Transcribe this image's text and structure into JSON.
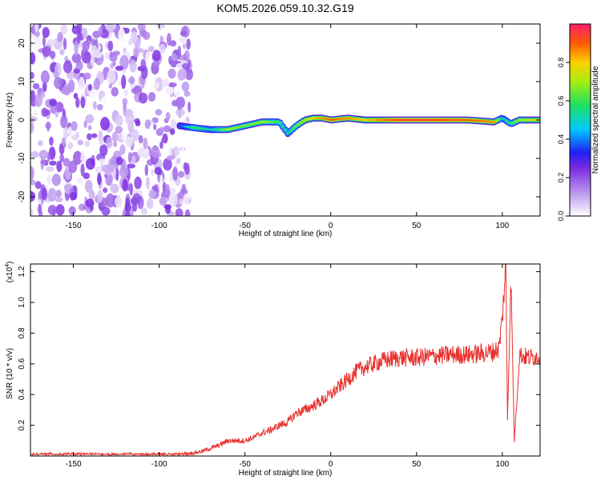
{
  "title": "KOM5.2026.059.10.32.G19",
  "chart_data": [
    {
      "type": "heatmap",
      "name": "spectrogram",
      "xlabel": "Height of straight line (km)",
      "ylabel": "Frequency (Hz)",
      "xlim": [
        -175,
        122
      ],
      "ylim": [
        -25,
        25
      ],
      "xticks": [
        -150,
        -100,
        -50,
        0,
        50,
        100
      ],
      "yticks": [
        -20,
        -10,
        0,
        10,
        20
      ],
      "colorbar": {
        "label": "Normalized spectral amplitude",
        "range": [
          0.0,
          1.0
        ],
        "ticks": [
          0.0,
          0.2,
          0.4,
          0.6,
          0.8
        ]
      },
      "signal_track": {
        "description": "narrow band near 0 Hz from about -88 km to 122 km",
        "x": [
          -88,
          -80,
          -70,
          -60,
          -50,
          -40,
          -30,
          -25,
          -20,
          -15,
          -10,
          -5,
          0,
          10,
          20,
          40,
          60,
          80,
          95,
          100,
          105,
          110,
          122
        ],
        "y": [
          -1.5,
          -2.0,
          -2.5,
          -2.5,
          -1.5,
          -0.5,
          -0.5,
          -3.5,
          -1.5,
          0.0,
          0.5,
          0.5,
          0.0,
          0.5,
          0.0,
          0.0,
          0.0,
          0.0,
          -0.5,
          0.5,
          -1.0,
          0.0,
          0.0
        ],
        "amplitude": [
          0.35,
          0.6,
          0.5,
          0.7,
          0.65,
          0.7,
          0.6,
          0.55,
          0.65,
          0.75,
          0.8,
          0.85,
          0.9,
          0.85,
          0.8,
          0.95,
          0.95,
          0.9,
          0.85,
          0.5,
          0.6,
          0.7,
          0.8
        ]
      },
      "noise_region": {
        "x_range": [
          -175,
          -82
        ],
        "amplitude_range": [
          0.0,
          0.25
        ]
      }
    },
    {
      "type": "line",
      "name": "snr",
      "xlabel": "Height of straight line (km)",
      "ylabel": "SNR (10 * v/v)",
      "y_multiplier": "(x10",
      "y_multiplier_exp": "4",
      "y_multiplier_close": ")",
      "xlim": [
        -175,
        122
      ],
      "ylim": [
        0,
        1.25
      ],
      "xticks": [
        -150,
        -100,
        -50,
        0,
        50,
        100
      ],
      "yticks": [
        0.2,
        0.4,
        0.6,
        0.8,
        1.0,
        1.2
      ],
      "color": "#e8302c",
      "series": {
        "name": "SNR",
        "x": [
          -175,
          -150,
          -120,
          -100,
          -90,
          -80,
          -75,
          -70,
          -65,
          -60,
          -55,
          -50,
          -45,
          -40,
          -35,
          -30,
          -25,
          -20,
          -15,
          -10,
          -5,
          0,
          5,
          10,
          15,
          20,
          25,
          30,
          35,
          40,
          50,
          60,
          70,
          80,
          90,
          95,
          98,
          100,
          102,
          103,
          105,
          107,
          110,
          115,
          122
        ],
        "y": [
          0.01,
          0.01,
          0.01,
          0.01,
          0.01,
          0.02,
          0.03,
          0.05,
          0.07,
          0.1,
          0.1,
          0.1,
          0.12,
          0.15,
          0.17,
          0.2,
          0.22,
          0.28,
          0.3,
          0.33,
          0.36,
          0.4,
          0.45,
          0.5,
          0.55,
          0.58,
          0.6,
          0.62,
          0.63,
          0.64,
          0.64,
          0.65,
          0.66,
          0.66,
          0.67,
          0.68,
          0.7,
          0.9,
          1.25,
          0.25,
          1.15,
          0.1,
          0.66,
          0.64,
          0.65
        ]
      }
    }
  ]
}
